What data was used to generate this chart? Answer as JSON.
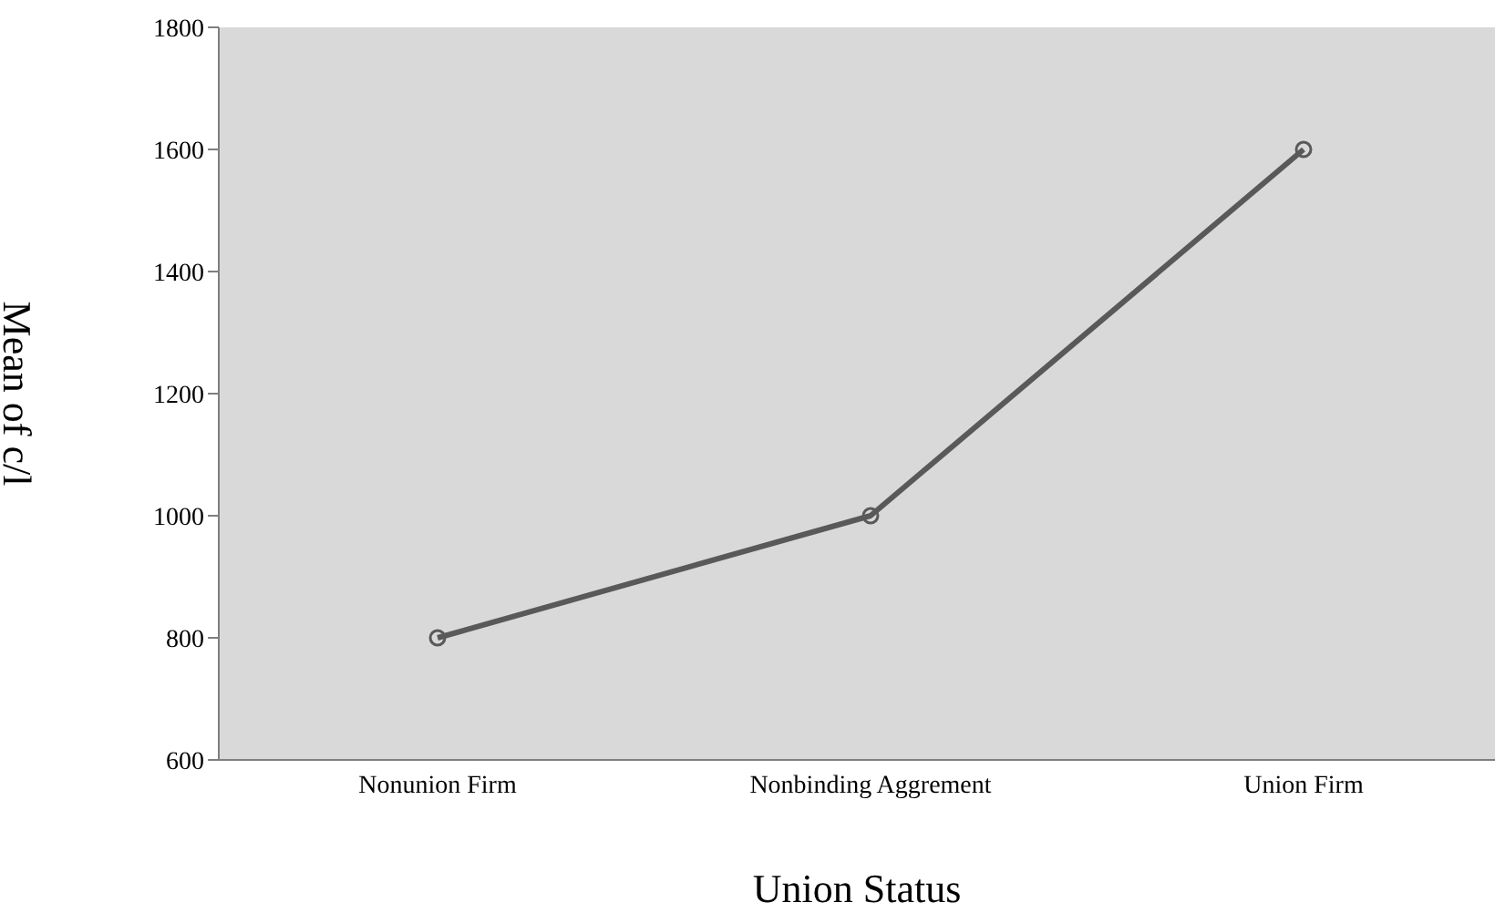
{
  "chart_data": {
    "type": "line",
    "xlabel": "Union Status",
    "ylabel": "Mean of c/l",
    "categories": [
      "Nonunion Firm",
      "Nonbinding Aggrement",
      "Union Firm"
    ],
    "series": [
      {
        "color": "#595959",
        "values": [
          800,
          1000,
          1600
        ]
      }
    ],
    "ylim": [
      600,
      1800
    ],
    "yticks": [
      600,
      800,
      1000,
      1200,
      1400,
      1600,
      1800
    ],
    "marker": "circle",
    "legend": false
  }
}
